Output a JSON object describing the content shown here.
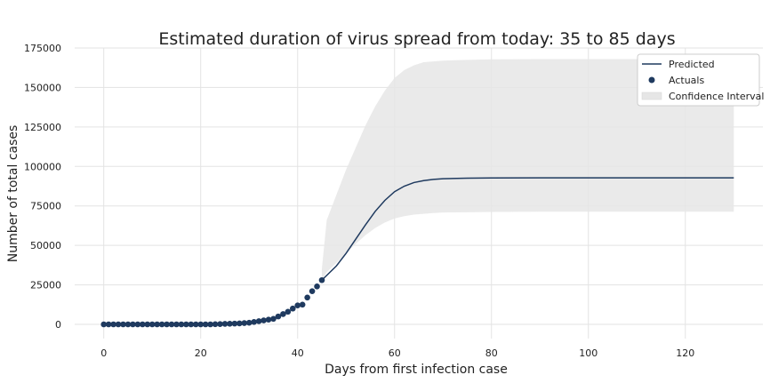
{
  "chart_data": {
    "type": "line",
    "title": "Estimated duration of virus spread from today: 35 to 85 days",
    "xlabel": "Days from first infection case",
    "ylabel": "Number of total cases",
    "xlim": [
      -6,
      136
    ],
    "ylim": [
      -9000,
      175000
    ],
    "x_ticks": [
      0,
      20,
      40,
      60,
      80,
      100,
      120
    ],
    "y_ticks": [
      0,
      25000,
      50000,
      75000,
      100000,
      125000,
      150000,
      175000
    ],
    "grid": true,
    "legend_position": "top-right",
    "colors": {
      "line": "#1f3a5f",
      "points": "#1f3a5f",
      "band": "#e6e6e6"
    },
    "series": [
      {
        "name": "Predicted",
        "kind": "line",
        "x": [
          45,
          48,
          50,
          52,
          54,
          56,
          58,
          60,
          62,
          64,
          66,
          68,
          70,
          75,
          80,
          90,
          100,
          110,
          120,
          130
        ],
        "y": [
          28000,
          37000,
          45000,
          54000,
          63000,
          71500,
          78500,
          84000,
          87500,
          89800,
          91000,
          91800,
          92200,
          92600,
          92700,
          92750,
          92800,
          92800,
          92800,
          92800
        ]
      },
      {
        "name": "Actuals",
        "kind": "scatter",
        "x": [
          0,
          1,
          2,
          3,
          4,
          5,
          6,
          7,
          8,
          9,
          10,
          11,
          12,
          13,
          14,
          15,
          16,
          17,
          18,
          19,
          20,
          21,
          22,
          23,
          24,
          25,
          26,
          27,
          28,
          29,
          30,
          31,
          32,
          33,
          34,
          35,
          36,
          37,
          38,
          39,
          40,
          41,
          42,
          43,
          44,
          45
        ],
        "y": [
          0,
          0,
          0,
          0,
          0,
          0,
          0,
          0,
          0,
          0,
          0,
          0,
          0,
          0,
          0,
          0,
          0,
          0,
          0,
          0,
          0,
          0,
          0,
          100,
          200,
          300,
          400,
          500,
          600,
          800,
          1000,
          1500,
          2000,
          2500,
          3000,
          3500,
          5000,
          6500,
          8000,
          10000,
          12000,
          12500,
          17000,
          21000,
          24000,
          28000
        ]
      },
      {
        "name": "Confidence Interval",
        "kind": "band",
        "x": [
          45,
          46,
          48,
          50,
          52,
          54,
          56,
          58,
          60,
          62,
          64,
          66,
          68,
          70,
          75,
          80,
          90,
          100,
          110,
          120,
          130
        ],
        "upper": [
          35000,
          66000,
          82000,
          98000,
          112000,
          126000,
          138000,
          148000,
          156000,
          161000,
          164000,
          166000,
          166500,
          167000,
          167500,
          167800,
          168000,
          168000,
          168000,
          168000,
          168000
        ],
        "lower": [
          28000,
          33000,
          39000,
          45000,
          51000,
          56500,
          61000,
          64500,
          67000,
          68500,
          69500,
          70000,
          70500,
          70800,
          71000,
          71200,
          71300,
          71300,
          71300,
          71300,
          71300
        ]
      }
    ]
  }
}
